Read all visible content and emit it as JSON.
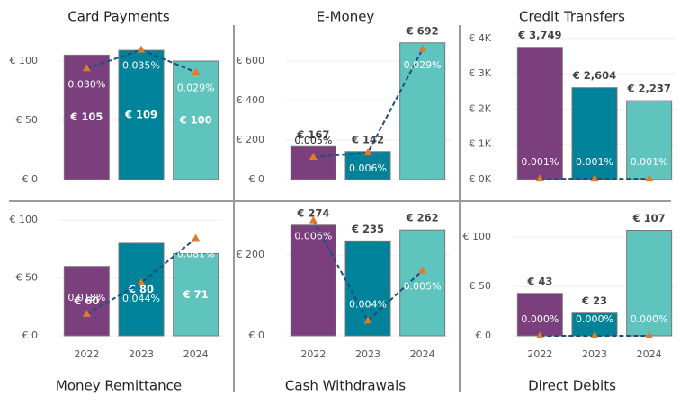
{
  "chart_data": [
    {
      "type": "bar",
      "title": "Card Payments",
      "title_position": "top",
      "value_label_position": "inside",
      "categories": [
        null,
        null,
        null
      ],
      "ylim": [
        0,
        125
      ],
      "yticks": [
        {
          "value": 0,
          "label": "€ 0"
        },
        {
          "value": 50,
          "label": "€ 50"
        },
        {
          "value": 100,
          "label": "€ 100"
        }
      ],
      "y2lim": [
        0,
        0.04
      ],
      "grid": true,
      "series": [
        {
          "values": [
            105,
            109,
            100
          ],
          "value_labels": [
            "€ 105",
            "€ 109",
            "€ 100"
          ],
          "colors": [
            "#7b3f7e",
            "#00829b",
            "#5fc4be"
          ]
        },
        {
          "type": "line",
          "axis": "y2",
          "values": [
            0.03,
            0.035,
            0.029
          ],
          "value_labels": [
            "0.030%",
            "0.035%",
            "0.029%"
          ],
          "color": "#1f4e79",
          "marker_color": "#e07b2a"
        }
      ]
    },
    {
      "type": "bar",
      "title": "E-Money",
      "title_position": "top",
      "value_label_position": "outside",
      "categories": [
        null,
        null,
        null
      ],
      "ylim": [
        0,
        750
      ],
      "yticks": [
        {
          "value": 0,
          "label": "€ 0"
        },
        {
          "value": 200,
          "label": "€ 200"
        },
        {
          "value": 400,
          "label": "€ 400"
        },
        {
          "value": 600,
          "label": "€ 600"
        }
      ],
      "y2lim": [
        0,
        0.033
      ],
      "grid": true,
      "series": [
        {
          "values": [
            167,
            142,
            692
          ],
          "value_labels": [
            "€ 167",
            "€ 142",
            "€ 692"
          ],
          "colors": [
            "#7b3f7e",
            "#00829b",
            "#5fc4be"
          ]
        },
        {
          "type": "line",
          "axis": "y2",
          "values": [
            0.005,
            0.006,
            0.029
          ],
          "value_labels": [
            "0.005%",
            "0.006%",
            "0.029%"
          ],
          "color": "#1f4e79",
          "marker_color": "#e07b2a"
        }
      ]
    },
    {
      "type": "bar",
      "title": "Credit Transfers",
      "title_position": "top",
      "value_label_position": "outside",
      "categories": [
        null,
        null,
        null
      ],
      "ylim": [
        0,
        4200
      ],
      "yticks": [
        {
          "value": 0,
          "label": "€ 0K"
        },
        {
          "value": 1000,
          "label": "€ 1K"
        },
        {
          "value": 2000,
          "label": "€ 2K"
        },
        {
          "value": 3000,
          "label": "€ 3K"
        },
        {
          "value": 4000,
          "label": "€ 4K"
        }
      ],
      "y2lim": [
        0,
        0.2
      ],
      "grid": true,
      "series": [
        {
          "values": [
            3749,
            2604,
            2237
          ],
          "value_labels": [
            "€ 3,749",
            "€ 2,604",
            "€ 2,237"
          ],
          "colors": [
            "#7b3f7e",
            "#00829b",
            "#5fc4be"
          ]
        },
        {
          "type": "line",
          "axis": "y2",
          "values": [
            0.001,
            0.001,
            0.001
          ],
          "value_labels": [
            "0.001%",
            "0.001%",
            "0.001%"
          ],
          "color": "#1f4e79",
          "marker_color": "#e07b2a"
        }
      ]
    },
    {
      "type": "bar",
      "title": "Money Remittance",
      "title_position": "bottom",
      "value_label_position": "inside",
      "categories": [
        "2022",
        "2023",
        "2024"
      ],
      "ylim": [
        0,
        104
      ],
      "yticks": [
        {
          "value": 0,
          "label": "€ 0"
        },
        {
          "value": 50,
          "label": "€ 50"
        },
        {
          "value": 100,
          "label": "€ 100"
        }
      ],
      "y2lim": [
        0,
        0.1
      ],
      "grid": true,
      "series": [
        {
          "values": [
            60,
            80,
            71
          ],
          "value_labels": [
            "€ 60",
            "€ 80",
            "€ 71"
          ],
          "colors": [
            "#7b3f7e",
            "#00829b",
            "#5fc4be"
          ]
        },
        {
          "type": "line",
          "axis": "y2",
          "values": [
            0.018,
            0.044,
            0.081
          ],
          "value_labels": [
            "0.018%",
            "0.044%",
            "0.081%"
          ],
          "color": "#1f4e79",
          "marker_color": "#e07b2a"
        }
      ]
    },
    {
      "type": "bar",
      "title": "Cash Withdrawals",
      "title_position": "bottom",
      "value_label_position": "outside",
      "categories": [
        "2022",
        "2023",
        "2024"
      ],
      "ylim": [
        0,
        298
      ],
      "yticks": [
        {
          "value": 0,
          "label": "€ 0"
        },
        {
          "value": 200,
          "label": "€ 200"
        }
      ],
      "y2lim": [
        0.0037,
        0.0061
      ],
      "grid": true,
      "series": [
        {
          "values": [
            274,
            235,
            262
          ],
          "value_labels": [
            "€ 274",
            "€ 235",
            "€ 262"
          ],
          "colors": [
            "#7b3f7e",
            "#00829b",
            "#5fc4be"
          ]
        },
        {
          "type": "line",
          "axis": "y2",
          "values": [
            0.006,
            0.004,
            0.005
          ],
          "value_labels": [
            "0.006%",
            "0.004%",
            "0.005%"
          ],
          "color": "#1f4e79",
          "marker_color": "#e07b2a"
        }
      ]
    },
    {
      "type": "bar",
      "title": "Direct Debits",
      "title_position": "bottom",
      "value_label_position": "outside",
      "categories": [
        "2022",
        "2023",
        "2024"
      ],
      "ylim": [
        0,
        122
      ],
      "yticks": [
        {
          "value": 0,
          "label": "€ 0"
        },
        {
          "value": 50,
          "label": "€ 50"
        },
        {
          "value": 100,
          "label": "€ 100"
        }
      ],
      "y2lim": [
        0,
        0.2
      ],
      "grid": true,
      "series": [
        {
          "values": [
            43,
            23,
            107
          ],
          "value_labels": [
            "€ 43",
            "€ 23",
            "€ 107"
          ],
          "colors": [
            "#7b3f7e",
            "#00829b",
            "#5fc4be"
          ]
        },
        {
          "type": "line",
          "axis": "y2",
          "values": [
            0,
            0,
            0
          ],
          "value_labels": [
            "0.000%",
            "0.000%",
            "0.000%"
          ],
          "color": "#1f4e79",
          "marker_color": "#e07b2a"
        }
      ]
    }
  ]
}
